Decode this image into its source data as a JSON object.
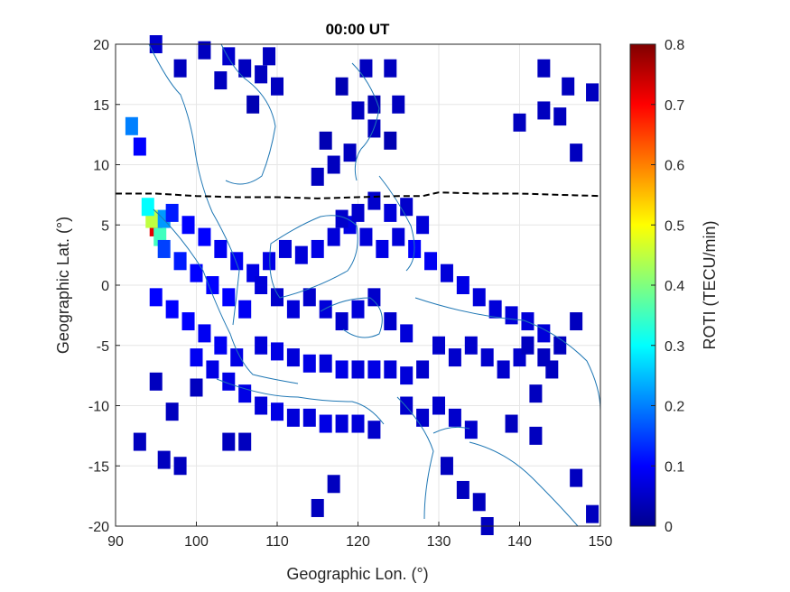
{
  "chart_data": {
    "type": "heatmap",
    "title": "00:00 UT",
    "xlabel": "Geographic Lon. (°)",
    "ylabel": "Geographic Lat. (°)",
    "xlim": [
      90,
      150
    ],
    "ylim": [
      -20,
      20
    ],
    "xticks": [
      90,
      100,
      110,
      120,
      130,
      140,
      150
    ],
    "yticks": [
      -20,
      -15,
      -10,
      -5,
      0,
      5,
      10,
      15,
      20
    ],
    "grid": true,
    "colorbar": {
      "label": "ROTI (TECU/min)",
      "colormap": "jet",
      "range": [
        0,
        0.8
      ],
      "ticks": [
        0,
        0.1,
        0.2,
        0.3,
        0.4,
        0.5,
        0.6,
        0.7,
        0.8
      ]
    },
    "dip_equator": {
      "style": "dashed black",
      "points": [
        [
          90,
          7.6
        ],
        [
          95,
          7.6
        ],
        [
          100,
          7.4
        ],
        [
          105,
          7.3
        ],
        [
          110,
          7.3
        ],
        [
          115,
          7.2
        ],
        [
          120,
          7.3
        ],
        [
          125,
          7.4
        ],
        [
          128,
          7.4
        ],
        [
          130,
          7.7
        ],
        [
          135,
          7.6
        ],
        [
          140,
          7.6
        ],
        [
          145,
          7.5
        ],
        [
          150,
          7.4
        ]
      ]
    },
    "cells": [
      [
        95,
        4.8,
        0.72
      ],
      [
        94.5,
        5.5,
        0.45
      ],
      [
        94,
        6.5,
        0.3
      ],
      [
        96,
        5.5,
        0.22
      ],
      [
        95.5,
        4,
        0.35
      ],
      [
        92,
        13.2,
        0.2
      ],
      [
        93,
        11.5,
        0.1
      ],
      [
        95,
        20,
        0.06
      ],
      [
        98,
        18,
        0.05
      ],
      [
        101,
        19.5,
        0.05
      ],
      [
        104,
        19,
        0.06
      ],
      [
        106,
        18,
        0.05
      ],
      [
        108,
        17.5,
        0.05
      ],
      [
        110,
        16.5,
        0.05
      ],
      [
        107,
        15,
        0.04
      ],
      [
        103,
        17,
        0.05
      ],
      [
        109,
        19,
        0.05
      ],
      [
        118,
        16.5,
        0.04
      ],
      [
        121,
        18,
        0.05
      ],
      [
        124,
        18,
        0.05
      ],
      [
        120,
        14.5,
        0.05
      ],
      [
        122,
        15,
        0.04
      ],
      [
        125,
        15,
        0.05
      ],
      [
        124,
        12,
        0.04
      ],
      [
        122,
        13,
        0.05
      ],
      [
        119,
        11,
        0.05
      ],
      [
        116,
        12,
        0.04
      ],
      [
        117,
        10,
        0.05
      ],
      [
        115,
        9,
        0.05
      ],
      [
        143,
        18,
        0.05
      ],
      [
        146,
        16.5,
        0.05
      ],
      [
        149,
        16,
        0.05
      ],
      [
        140,
        13.5,
        0.05
      ],
      [
        143,
        14.5,
        0.05
      ],
      [
        145,
        14,
        0.05
      ],
      [
        147,
        11,
        0.05
      ],
      [
        96,
        3,
        0.15
      ],
      [
        98,
        2,
        0.12
      ],
      [
        100,
        1,
        0.1
      ],
      [
        102,
        0,
        0.1
      ],
      [
        104,
        -1,
        0.1
      ],
      [
        106,
        -2,
        0.09
      ],
      [
        97,
        6,
        0.12
      ],
      [
        99,
        5,
        0.1
      ],
      [
        101,
        4,
        0.1
      ],
      [
        103,
        3,
        0.09
      ],
      [
        105,
        2,
        0.09
      ],
      [
        107,
        1,
        0.08
      ],
      [
        109,
        2,
        0.08
      ],
      [
        111,
        3,
        0.07
      ],
      [
        113,
        2.5,
        0.07
      ],
      [
        115,
        3,
        0.08
      ],
      [
        117,
        4,
        0.07
      ],
      [
        119,
        5,
        0.08
      ],
      [
        121,
        4,
        0.07
      ],
      [
        123,
        3,
        0.08
      ],
      [
        125,
        4,
        0.07
      ],
      [
        127,
        3,
        0.1
      ],
      [
        129,
        2,
        0.09
      ],
      [
        131,
        1,
        0.07
      ],
      [
        133,
        0,
        0.08
      ],
      [
        135,
        -1,
        0.07
      ],
      [
        137,
        -2,
        0.07
      ],
      [
        139,
        -2.5,
        0.07
      ],
      [
        141,
        -3,
        0.07
      ],
      [
        143,
        -4,
        0.07
      ],
      [
        120,
        6,
        0.06
      ],
      [
        122,
        7,
        0.06
      ],
      [
        118,
        5.5,
        0.06
      ],
      [
        124,
        6,
        0.07
      ],
      [
        126,
        6.5,
        0.06
      ],
      [
        128,
        5,
        0.07
      ],
      [
        95,
        -1,
        0.1
      ],
      [
        97,
        -2,
        0.1
      ],
      [
        99,
        -3,
        0.1
      ],
      [
        101,
        -4,
        0.09
      ],
      [
        103,
        -5,
        0.09
      ],
      [
        105,
        -6,
        0.08
      ],
      [
        100,
        -6,
        0.09
      ],
      [
        102,
        -7,
        0.08
      ],
      [
        104,
        -8,
        0.08
      ],
      [
        106,
        -9,
        0.08
      ],
      [
        108,
        -10,
        0.07
      ],
      [
        110,
        -10.5,
        0.08
      ],
      [
        112,
        -11,
        0.07
      ],
      [
        114,
        -11,
        0.07
      ],
      [
        116,
        -11.5,
        0.08
      ],
      [
        118,
        -11.5,
        0.07
      ],
      [
        120,
        -11.5,
        0.07
      ],
      [
        122,
        -12,
        0.06
      ],
      [
        108,
        -5,
        0.07
      ],
      [
        110,
        -5.5,
        0.08
      ],
      [
        112,
        -6,
        0.07
      ],
      [
        114,
        -6.5,
        0.08
      ],
      [
        116,
        -6.5,
        0.07
      ],
      [
        118,
        -7,
        0.08
      ],
      [
        120,
        -7,
        0.07
      ],
      [
        122,
        -7,
        0.08
      ],
      [
        124,
        -7,
        0.07
      ],
      [
        126,
        -7.5,
        0.07
      ],
      [
        128,
        -7,
        0.06
      ],
      [
        108,
        0,
        0.07
      ],
      [
        110,
        -1,
        0.06
      ],
      [
        112,
        -2,
        0.07
      ],
      [
        114,
        -1,
        0.06
      ],
      [
        116,
        -2,
        0.07
      ],
      [
        118,
        -3,
        0.06
      ],
      [
        120,
        -2,
        0.07
      ],
      [
        122,
        -1,
        0.06
      ],
      [
        124,
        -3,
        0.06
      ],
      [
        126,
        -4,
        0.07
      ],
      [
        130,
        -5,
        0.06
      ],
      [
        132,
        -6,
        0.06
      ],
      [
        134,
        -5,
        0.06
      ],
      [
        136,
        -6,
        0.06
      ],
      [
        138,
        -7,
        0.06
      ],
      [
        140,
        -6,
        0.06
      ],
      [
        126,
        -10,
        0.06
      ],
      [
        128,
        -11,
        0.06
      ],
      [
        130,
        -10,
        0.06
      ],
      [
        132,
        -11,
        0.06
      ],
      [
        134,
        -12,
        0.06
      ],
      [
        131,
        -15,
        0.05
      ],
      [
        133,
        -17,
        0.05
      ],
      [
        135,
        -18,
        0.05
      ],
      [
        139,
        -11.5,
        0.05
      ],
      [
        142,
        -9,
        0.05
      ],
      [
        141,
        -5,
        0.05
      ],
      [
        143,
        -6,
        0.05
      ],
      [
        145,
        -5,
        0.05
      ],
      [
        147,
        -3,
        0.05
      ],
      [
        144,
        -7,
        0.05
      ],
      [
        93,
        -13,
        0.05
      ],
      [
        96,
        -14.5,
        0.05
      ],
      [
        98,
        -15,
        0.05
      ],
      [
        97,
        -10.5,
        0.05
      ],
      [
        100,
        -8.5,
        0.05
      ],
      [
        95,
        -8,
        0.05
      ],
      [
        104,
        -13,
        0.05
      ],
      [
        106,
        -13,
        0.05
      ],
      [
        117,
        -16.5,
        0.05
      ],
      [
        115,
        -18.5,
        0.05
      ],
      [
        142,
        -12.5,
        0.05
      ],
      [
        147,
        -16,
        0.05
      ],
      [
        149,
        -19,
        0.05
      ],
      [
        136,
        -20,
        0.05
      ]
    ]
  }
}
